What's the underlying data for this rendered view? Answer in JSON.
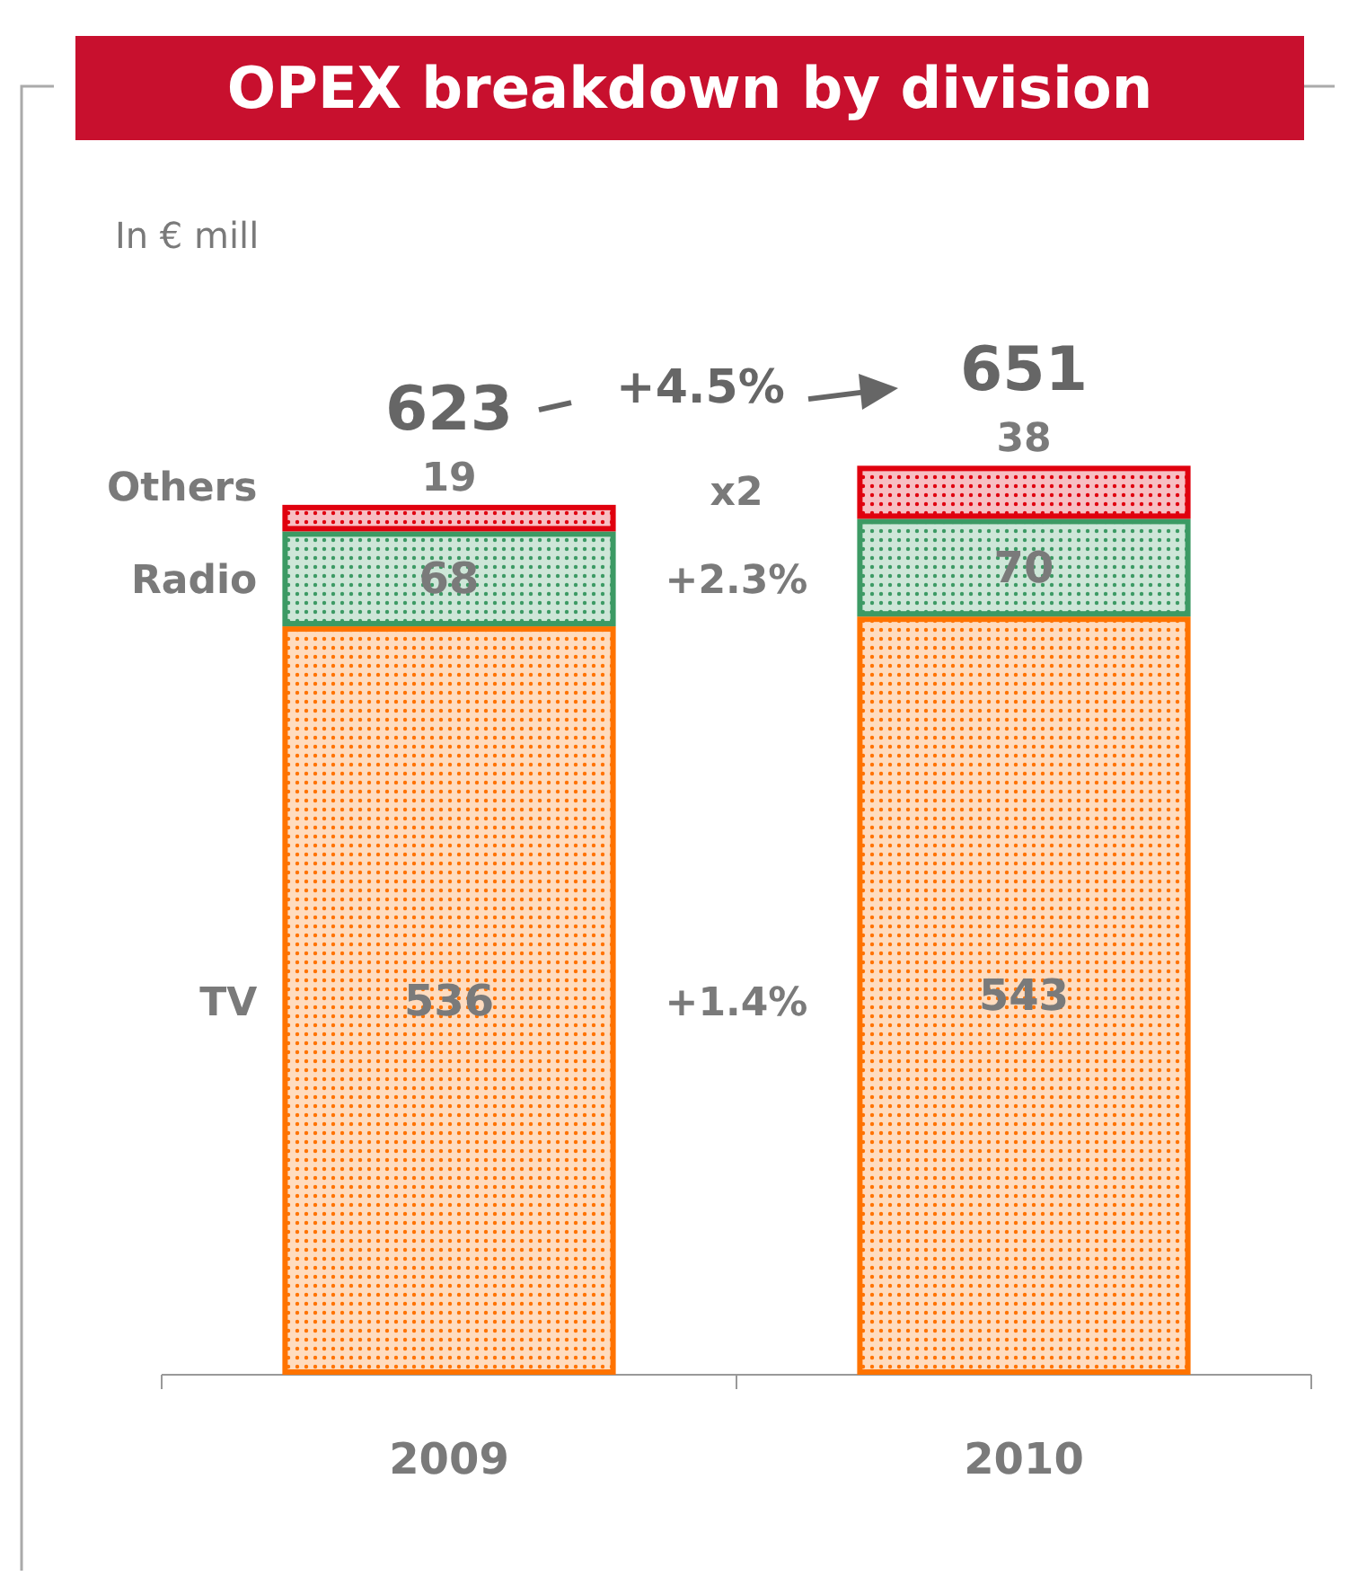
{
  "chart_data": {
    "type": "bar",
    "title": "OPEX breakdown by division",
    "categories": [
      "2009",
      "2010"
    ],
    "stacked": true,
    "data_labels": true,
    "series": [
      {
        "name": "TV",
        "color": "#ff7300",
        "values": [
          536,
          543
        ]
      },
      {
        "name": "Radio",
        "color": "#3c9a64",
        "values": [
          68,
          70
        ]
      },
      {
        "name": "Others",
        "color": "#e0000e",
        "values": [
          19,
          38
        ]
      }
    ],
    "totals": [
      "623",
      "651"
    ],
    "annotations": [
      "In € mill",
      "+4.5%",
      "+1.4%",
      "+2.3%",
      "x2"
    ]
  }
}
